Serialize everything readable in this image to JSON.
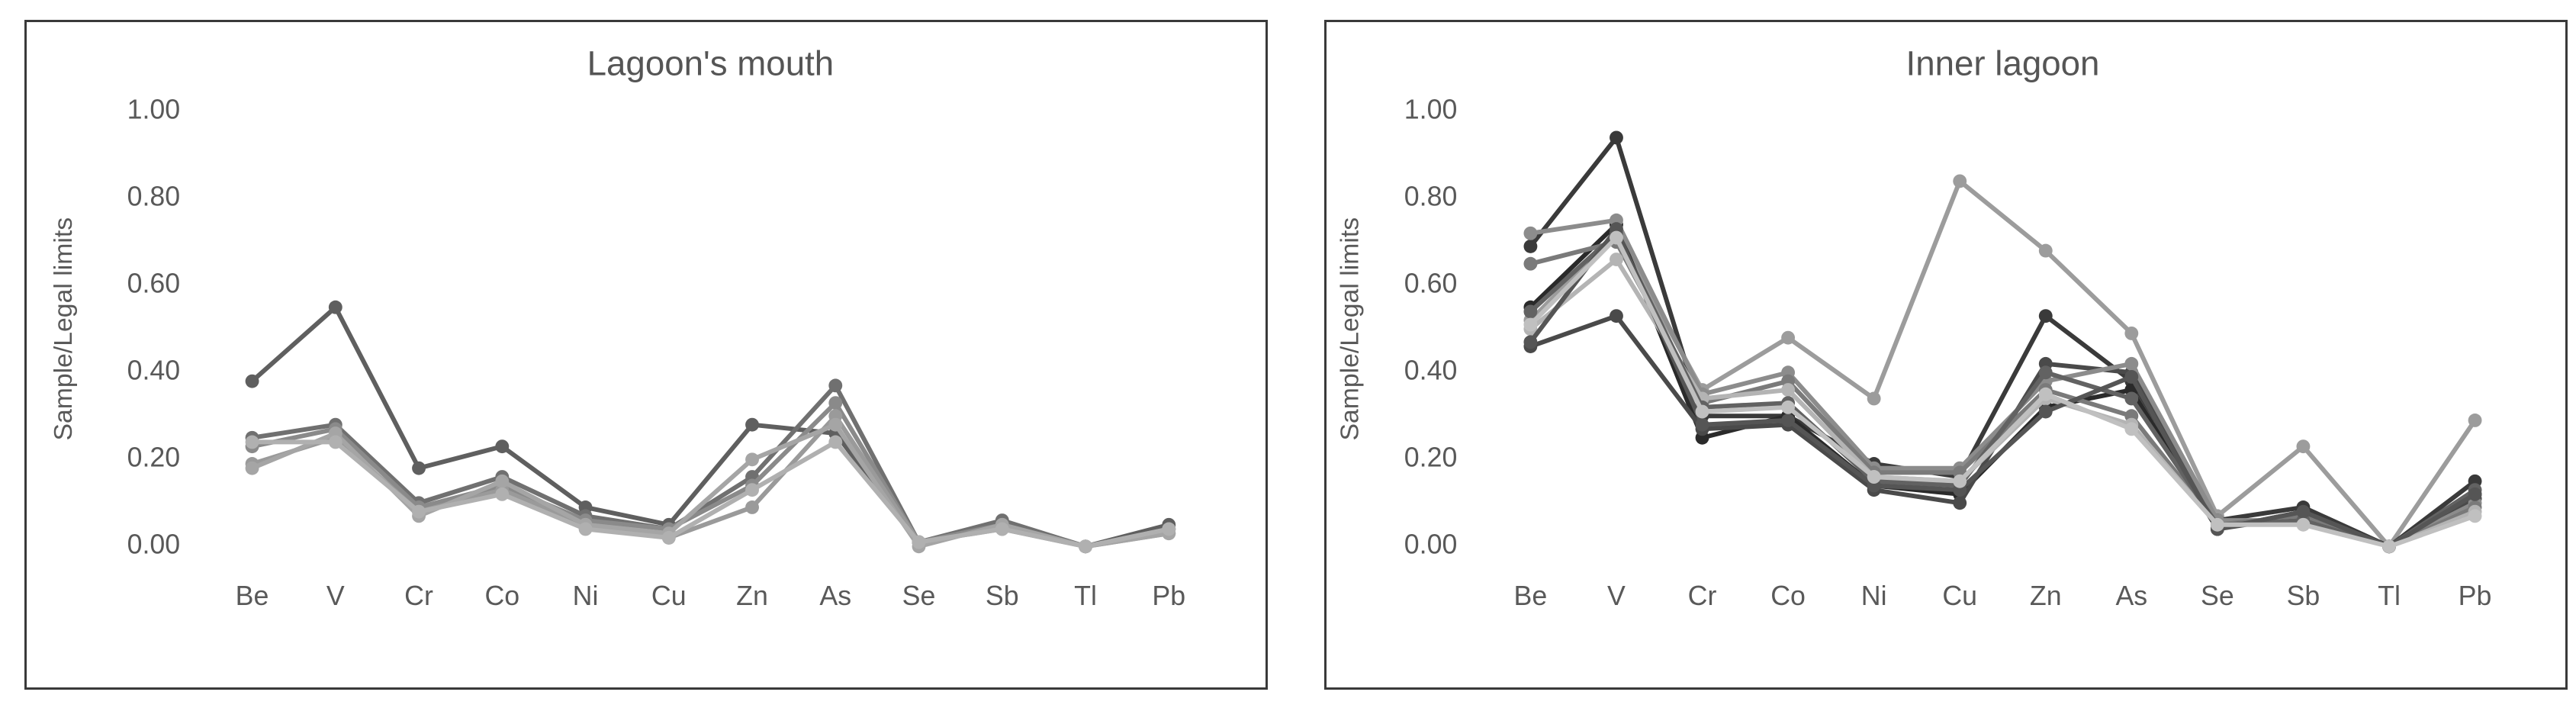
{
  "chart_data": [
    {
      "type": "line",
      "title": "Lagoon's mouth",
      "ylabel": "Sample/Legal limits",
      "xlabel": "",
      "categories": [
        "Be",
        "V",
        "Cr",
        "Co",
        "Ni",
        "Cu",
        "Zn",
        "As",
        "Se",
        "Sb",
        "Tl",
        "Pb"
      ],
      "ylim": [
        0,
        1.0
      ],
      "yticks": [
        "0.00",
        "0.20",
        "0.40",
        "0.60",
        "0.80",
        "1.00"
      ],
      "grid": false,
      "legend": "none",
      "series": [
        {
          "color": "#5f5f5f",
          "values": [
            0.38,
            0.55,
            0.18,
            0.23,
            0.09,
            0.05,
            0.28,
            0.26,
            0.01,
            0.05,
            0.0,
            0.05
          ]
        },
        {
          "color": "#707070",
          "values": [
            0.25,
            0.28,
            0.1,
            0.16,
            0.07,
            0.04,
            0.16,
            0.37,
            0.01,
            0.06,
            0.0,
            0.04
          ]
        },
        {
          "color": "#8a8a8a",
          "values": [
            0.23,
            0.27,
            0.09,
            0.14,
            0.06,
            0.04,
            0.14,
            0.33,
            0.01,
            0.05,
            0.0,
            0.04
          ]
        },
        {
          "color": "#9a9a9a",
          "values": [
            0.19,
            0.25,
            0.08,
            0.13,
            0.05,
            0.02,
            0.09,
            0.3,
            0.01,
            0.04,
            0.0,
            0.03
          ]
        },
        {
          "color": "#a5a5a5",
          "values": [
            0.18,
            0.26,
            0.07,
            0.15,
            0.05,
            0.03,
            0.2,
            0.28,
            0.0,
            0.05,
            0.0,
            0.03
          ]
        },
        {
          "color": "#b0b0b0",
          "values": [
            0.24,
            0.24,
            0.08,
            0.12,
            0.04,
            0.02,
            0.13,
            0.24,
            0.01,
            0.04,
            0.0,
            0.04
          ]
        }
      ]
    },
    {
      "type": "line",
      "title": "Inner lagoon",
      "ylabel": "Sample/Legal limits",
      "xlabel": "",
      "categories": [
        "Be",
        "V",
        "Cr",
        "Co",
        "Ni",
        "Cu",
        "Zn",
        "As",
        "Se",
        "Sb",
        "Tl",
        "Pb"
      ],
      "ylim": [
        0,
        1.0
      ],
      "yticks": [
        "0.00",
        "0.20",
        "0.40",
        "0.60",
        "0.80",
        "1.00"
      ],
      "grid": false,
      "legend": "none",
      "series": [
        {
          "color": "#9c9c9c",
          "values": [
            0.52,
            0.72,
            0.36,
            0.48,
            0.34,
            0.84,
            0.68,
            0.49,
            0.07,
            0.23,
            0.0,
            0.29
          ]
        },
        {
          "color": "#3a3a3a",
          "values": [
            0.69,
            0.94,
            0.3,
            0.3,
            0.19,
            0.16,
            0.53,
            0.38,
            0.06,
            0.09,
            0.0,
            0.15
          ]
        },
        {
          "color": "#2a2a2a",
          "values": [
            0.55,
            0.74,
            0.25,
            0.3,
            0.14,
            0.12,
            0.32,
            0.36,
            0.04,
            0.08,
            0.0,
            0.12
          ]
        },
        {
          "color": "#4a4a4a",
          "values": [
            0.46,
            0.53,
            0.27,
            0.28,
            0.13,
            0.1,
            0.42,
            0.4,
            0.04,
            0.07,
            0.0,
            0.11
          ]
        },
        {
          "color": "#8c8c8c",
          "values": [
            0.72,
            0.75,
            0.35,
            0.4,
            0.18,
            0.18,
            0.38,
            0.42,
            0.06,
            0.06,
            0.0,
            0.1
          ]
        },
        {
          "color": "#7a7a7a",
          "values": [
            0.65,
            0.7,
            0.33,
            0.38,
            0.17,
            0.17,
            0.36,
            0.3,
            0.05,
            0.07,
            0.0,
            0.09
          ]
        },
        {
          "color": "#b4b4b4",
          "values": [
            0.5,
            0.66,
            0.34,
            0.36,
            0.16,
            0.15,
            0.34,
            0.28,
            0.05,
            0.06,
            0.0,
            0.08
          ]
        },
        {
          "color": "#626262",
          "values": [
            0.54,
            0.72,
            0.32,
            0.33,
            0.15,
            0.14,
            0.4,
            0.34,
            0.05,
            0.06,
            0.0,
            0.13
          ]
        },
        {
          "color": "#555555",
          "values": [
            0.47,
            0.73,
            0.28,
            0.29,
            0.14,
            0.13,
            0.31,
            0.39,
            0.04,
            0.08,
            0.0,
            0.12
          ]
        },
        {
          "color": "#c0c0c0",
          "values": [
            0.51,
            0.71,
            0.31,
            0.32,
            0.16,
            0.15,
            0.35,
            0.27,
            0.05,
            0.05,
            0.0,
            0.07
          ]
        }
      ]
    }
  ]
}
